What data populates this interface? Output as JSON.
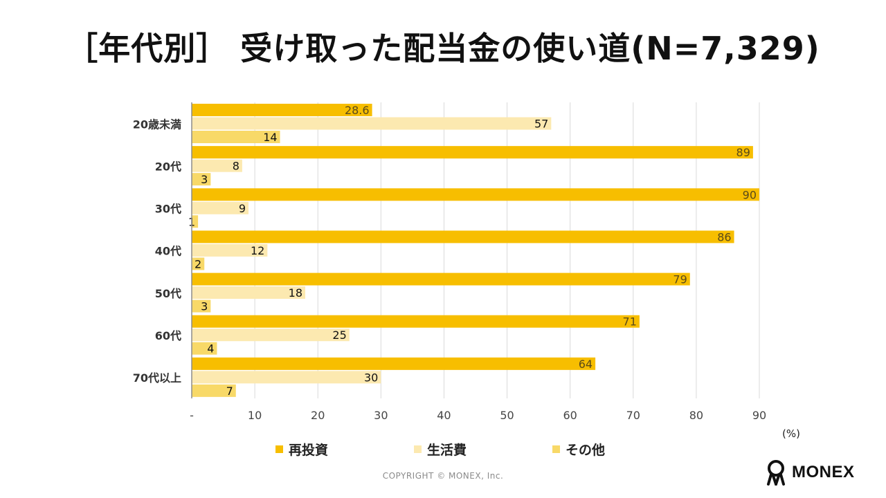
{
  "title": "［年代別］ 受け取った配当金の使い道(N=7,329)",
  "unit_label": "(%)",
  "copyright": "COPYRIGHT © MONEX, Inc.",
  "brand": "MONEX",
  "colors": {
    "reinvest": "#F7BE00",
    "living": "#FCE9B0",
    "other": "#F8D968",
    "grid": "#d9d9d9",
    "axis": "#8c8c8c"
  },
  "chart_data": {
    "type": "bar",
    "orientation": "horizontal",
    "categories": [
      "20歳未満",
      "20代",
      "30代",
      "40代",
      "50代",
      "60代",
      "70代以上"
    ],
    "series": [
      {
        "name": "再投資",
        "values": [
          28.6,
          89,
          90,
          86,
          79,
          71,
          64
        ],
        "labels": [
          "28.6",
          "89",
          "90",
          "86",
          "79",
          "71",
          "64"
        ]
      },
      {
        "name": "生活費",
        "values": [
          57,
          8,
          9,
          12,
          18,
          25,
          30
        ],
        "labels": [
          "57",
          "8",
          "9",
          "12",
          "18",
          "25",
          "30"
        ]
      },
      {
        "name": "その他",
        "values": [
          14,
          3,
          1,
          2,
          3,
          4,
          7
        ],
        "labels": [
          "14",
          "3",
          "1",
          "2",
          "3",
          "4",
          "7"
        ]
      }
    ],
    "xlim": [
      0,
      90
    ],
    "x_ticks": [
      "-",
      "10",
      "20",
      "30",
      "40",
      "50",
      "60",
      "70",
      "80",
      "90"
    ],
    "grid": true,
    "legend_position": "bottom"
  }
}
